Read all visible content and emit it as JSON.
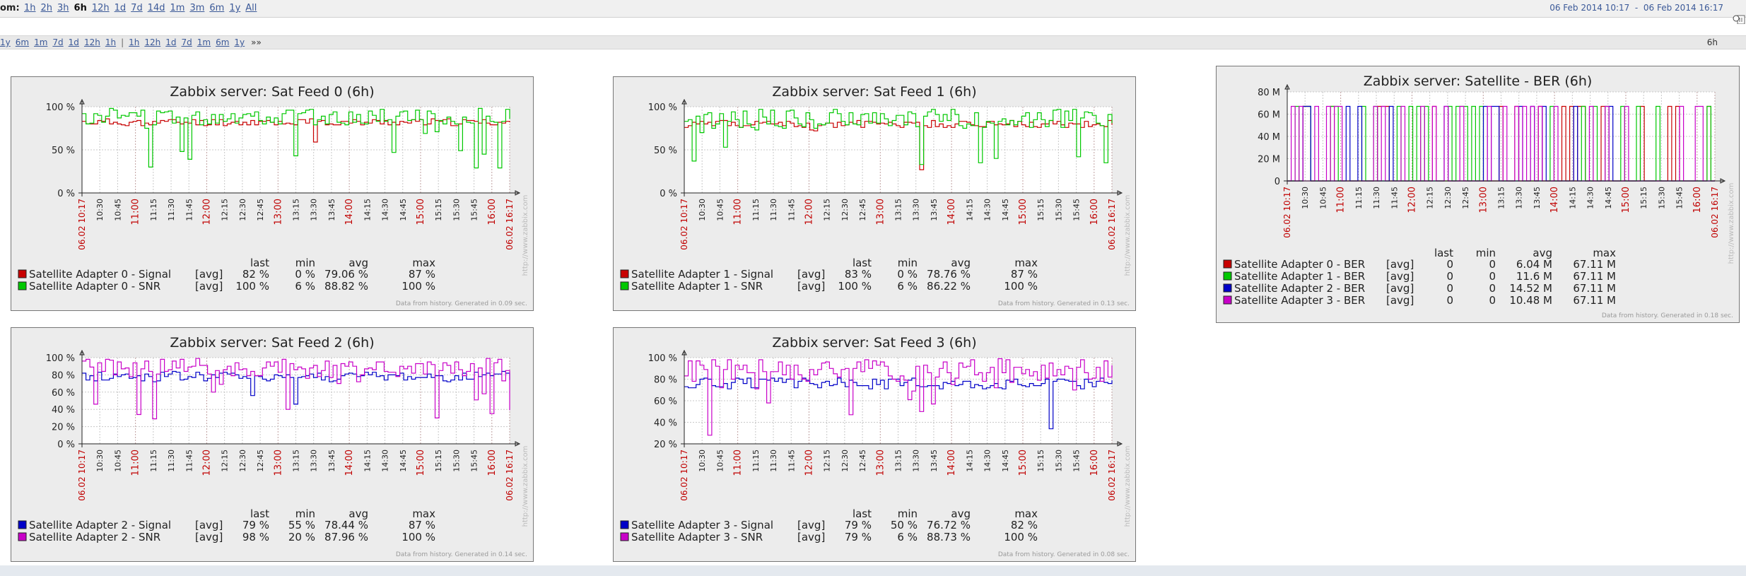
{
  "zoom": {
    "label": "om:",
    "links": [
      "1h",
      "2h",
      "3h",
      "6h",
      "12h",
      "1d",
      "7d",
      "14d",
      "1m",
      "3m",
      "6m",
      "1y",
      "All"
    ],
    "active": "6h"
  },
  "period": {
    "from": "06 Feb 2014 10:17",
    "separator": "-",
    "to": "06 Feb 2014 16:17"
  },
  "nav": {
    "back_links": [
      "1y",
      "6m",
      "1m",
      "7d",
      "1d",
      "12h",
      "1h"
    ],
    "separator": "|",
    "fwd_links": [
      "1h",
      "12h",
      "1d",
      "7d",
      "1m",
      "6m",
      "1y"
    ],
    "more": "»»",
    "current_period": "6h"
  },
  "x_axis": {
    "labels": [
      "06.02 10:17",
      "10:30",
      "10:45",
      "11:00",
      "11:15",
      "11:30",
      "11:45",
      "12:00",
      "12:15",
      "12:30",
      "12:45",
      "13:00",
      "13:15",
      "13:30",
      "13:45",
      "14:00",
      "14:15",
      "14:30",
      "14:45",
      "15:00",
      "15:15",
      "15:30",
      "15:45",
      "16:00",
      "06.02 16:17"
    ],
    "red_labels": [
      "06.02 10:17",
      "11:00",
      "12:00",
      "13:00",
      "14:00",
      "15:00",
      "16:00",
      "06.02 16:17"
    ]
  },
  "legend_headers": {
    "last": "last",
    "min": "min",
    "avg": "avg",
    "max": "max"
  },
  "graphs": [
    {
      "id": "feed0",
      "title": "Zabbix server: Sat Feed 0 (6h)",
      "y_labels": [
        "100 %",
        "50 %",
        "0 %"
      ],
      "y_ticks": [
        100,
        50,
        0
      ],
      "y_range": [
        0,
        100
      ],
      "series": [
        {
          "name": "Satellite Adapter 0 - Signal",
          "func": "[avg]",
          "last": "82 %",
          "min": "0 %",
          "avg": "79.06 %",
          "max": "87 %",
          "color": "#c80000"
        },
        {
          "name": "Satellite Adapter 0 - SNR",
          "func": "[avg]",
          "last": "100 %",
          "min": "6 %",
          "avg": "88.82 %",
          "max": "100 %",
          "color": "#00c800"
        }
      ],
      "footer": "Data from history. Generated in 0.09 sec.",
      "watermark": "http://www.zabbix.com"
    },
    {
      "id": "feed1",
      "title": "Zabbix server: Sat Feed 1 (6h)",
      "y_labels": [
        "100 %",
        "50 %",
        "0 %"
      ],
      "y_ticks": [
        100,
        50,
        0
      ],
      "y_range": [
        0,
        100
      ],
      "series": [
        {
          "name": "Satellite Adapter 1 - Signal",
          "func": "[avg]",
          "last": "83 %",
          "min": "0 %",
          "avg": "78.76 %",
          "max": "87 %",
          "color": "#c80000"
        },
        {
          "name": "Satellite Adapter 1 - SNR",
          "func": "[avg]",
          "last": "100 %",
          "min": "6 %",
          "avg": "86.22 %",
          "max": "100 %",
          "color": "#00c800"
        }
      ],
      "footer": "Data from history. Generated in 0.13 sec.",
      "watermark": "http://www.zabbix.com"
    },
    {
      "id": "ber",
      "title": "Zabbix server: Satellite - BER (6h)",
      "y_labels": [
        "80 M",
        "60 M",
        "40 M",
        "20 M",
        "0"
      ],
      "y_ticks": [
        80,
        60,
        40,
        20,
        0
      ],
      "y_range": [
        0,
        80
      ],
      "series": [
        {
          "name": "Satellite Adapter 0 - BER",
          "func": "[avg]",
          "last": "0",
          "min": "0",
          "avg": "6.04 M",
          "max": "67.11 M",
          "color": "#c80000"
        },
        {
          "name": "Satellite Adapter 1 - BER",
          "func": "[avg]",
          "last": "0",
          "min": "0",
          "avg": "11.6 M",
          "max": "67.11 M",
          "color": "#00c800"
        },
        {
          "name": "Satellite Adapter 2 - BER",
          "func": "[avg]",
          "last": "0",
          "min": "0",
          "avg": "14.52 M",
          "max": "67.11 M",
          "color": "#0000c8"
        },
        {
          "name": "Satellite Adapter 3 - BER",
          "func": "[avg]",
          "last": "0",
          "min": "0",
          "avg": "10.48 M",
          "max": "67.11 M",
          "color": "#c800c8"
        }
      ],
      "footer": "Data from history. Generated in 0.18 sec.",
      "watermark": "http://www.zabbix.com"
    },
    {
      "id": "feed2",
      "title": "Zabbix server: Sat Feed 2 (6h)",
      "y_labels": [
        "100 %",
        "80 %",
        "60 %",
        "40 %",
        "20 %",
        "0 %"
      ],
      "y_ticks": [
        100,
        80,
        60,
        40,
        20,
        0
      ],
      "y_range": [
        0,
        100
      ],
      "series": [
        {
          "name": "Satellite Adapter 2 - Signal",
          "func": "[avg]",
          "last": "79 %",
          "min": "55 %",
          "avg": "78.44 %",
          "max": "87 %",
          "color": "#0000c8"
        },
        {
          "name": "Satellite Adapter 2 - SNR",
          "func": "[avg]",
          "last": "98 %",
          "min": "20 %",
          "avg": "87.96 %",
          "max": "100 %",
          "color": "#c800c8"
        }
      ],
      "footer": "Data from history. Generated in 0.14 sec.",
      "watermark": "http://www.zabbix.com"
    },
    {
      "id": "feed3",
      "title": "Zabbix server: Sat Feed 3 (6h)",
      "y_labels": [
        "100 %",
        "80 %",
        "60 %",
        "40 %",
        "20 %"
      ],
      "y_ticks": [
        100,
        80,
        60,
        40,
        20
      ],
      "y_range": [
        20,
        100
      ],
      "series": [
        {
          "name": "Satellite Adapter 3 - Signal",
          "func": "[avg]",
          "last": "79 %",
          "min": "50 %",
          "avg": "76.72 %",
          "max": "82 %",
          "color": "#0000c8"
        },
        {
          "name": "Satellite Adapter 3 - SNR",
          "func": "[avg]",
          "last": "79 %",
          "min": "6 %",
          "avg": "88.73 %",
          "max": "100 %",
          "color": "#c800c8"
        }
      ],
      "footer": "Data from history. Generated in 0.08 sec.",
      "watermark": "http://www.zabbix.com"
    }
  ]
}
